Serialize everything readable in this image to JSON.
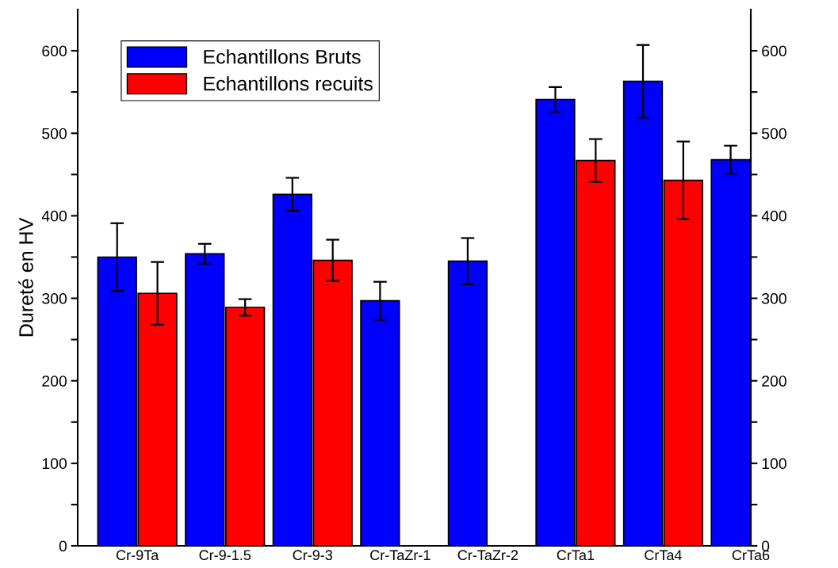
{
  "chart_data": {
    "type": "bar",
    "ylabel": "Dureté en HV",
    "categories": [
      "Cr-9Ta",
      "Cr-9-1.5",
      "Cr-9-3",
      "Cr-TaZr-1",
      "Cr-TaZr-2",
      "CrTa1",
      "CrTa4",
      "CrTa6"
    ],
    "series": [
      {
        "name": "Echantillons Bruts",
        "color": "#0000ff",
        "values": [
          350,
          354,
          426,
          297,
          345,
          541,
          563,
          468
        ],
        "errors": [
          41,
          12,
          20,
          23,
          28,
          15,
          44,
          17
        ]
      },
      {
        "name": "Echantillons recuits",
        "color": "#ff0000",
        "values": [
          306,
          289,
          346,
          null,
          null,
          467,
          443,
          null
        ],
        "errors": [
          38,
          10,
          25,
          null,
          null,
          26,
          47,
          null
        ]
      }
    ],
    "ylim": [
      0,
      650
    ],
    "yticks": [
      0,
      {
        "value": 50,
        "label": null
      },
      100,
      {
        "value": 150,
        "label": null
      },
      200,
      {
        "value": 250,
        "label": null
      },
      300,
      {
        "value": 350,
        "label": null
      },
      400,
      {
        "value": 450,
        "label": null
      },
      500,
      {
        "value": 550,
        "label": null
      },
      600
    ],
    "y2lim": [
      0,
      650
    ],
    "y2ticks": [
      0,
      {
        "value": 50,
        "label": null
      },
      100,
      {
        "value": 150,
        "label": null
      },
      200,
      {
        "value": 250,
        "label": null
      },
      300,
      {
        "value": 350,
        "label": null
      },
      400,
      {
        "value": 450,
        "label": null
      },
      500,
      {
        "value": 550,
        "label": null
      },
      600
    ],
    "grid": false,
    "legend": "top left"
  }
}
